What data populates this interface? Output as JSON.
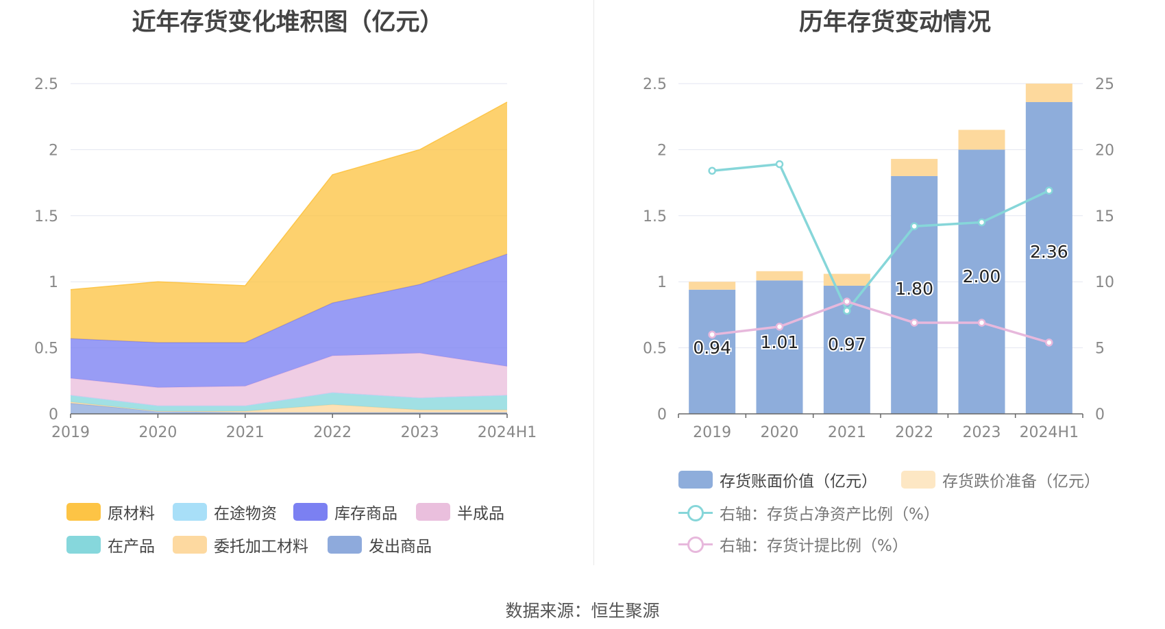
{
  "chart_data": [
    {
      "type": "area",
      "stacked": true,
      "title": "近年存货变化堆积图（亿元）",
      "categories": [
        "2019",
        "2020",
        "2021",
        "2022",
        "2023",
        "2024H1"
      ],
      "y_ticks": [
        "0",
        "0.5",
        "1",
        "1.5",
        "2",
        "2.5"
      ],
      "ylim": [
        0,
        2.5
      ],
      "grid": true,
      "legend_position": "bottom",
      "series": [
        {
          "name": "发出商品",
          "color": "#8eaadc",
          "values": [
            0.08,
            0.02,
            0.01,
            0.01,
            0.01,
            0.01
          ]
        },
        {
          "name": "委托加工材料",
          "color": "#fdd9a0",
          "values": [
            0.01,
            0.0,
            0.01,
            0.06,
            0.02,
            0.02
          ]
        },
        {
          "name": "在产品",
          "color": "#86d7dc",
          "values": [
            0.05,
            0.04,
            0.04,
            0.09,
            0.09,
            0.11
          ]
        },
        {
          "name": "在途物资",
          "color": "#a8dff8",
          "values": [
            0.0,
            0.0,
            0.0,
            0.0,
            0.0,
            0.0
          ]
        },
        {
          "name": "半成品",
          "color": "#eabfdd",
          "values": [
            0.13,
            0.14,
            0.15,
            0.28,
            0.34,
            0.22
          ]
        },
        {
          "name": "库存商品",
          "color": "#7b80f2",
          "values": [
            0.3,
            0.34,
            0.33,
            0.4,
            0.52,
            0.85
          ]
        },
        {
          "name": "原材料",
          "color": "#fdc445",
          "values": [
            0.37,
            0.46,
            0.43,
            0.97,
            1.02,
            1.15
          ]
        }
      ],
      "legend_order": [
        "原材料",
        "在途物资",
        "库存商品",
        "半成品",
        "在产品",
        "委托加工材料",
        "发出商品"
      ]
    },
    {
      "type": "bar",
      "stacked": true,
      "title": "历年存货变动情况",
      "categories": [
        "2019",
        "2020",
        "2021",
        "2022",
        "2023",
        "2024H1"
      ],
      "y_ticks": [
        "0",
        "0.5",
        "1",
        "1.5",
        "2",
        "2.5"
      ],
      "ylim": [
        0,
        2.5
      ],
      "y2_ticks": [
        "0",
        "5",
        "10",
        "15",
        "20",
        "25"
      ],
      "y2lim": [
        0,
        25
      ],
      "grid": true,
      "legend_position": "bottom",
      "bar_series": [
        {
          "name": "存货账面价值（亿元）",
          "color": "#8eaddb",
          "values": [
            0.94,
            1.01,
            0.97,
            1.8,
            2.0,
            2.36
          ],
          "labels": [
            "0.94",
            "1.01",
            "0.97",
            "1.80",
            "2.00",
            "2.36"
          ]
        },
        {
          "name": "存货跌价准备（亿元）",
          "color": "#fdd99d",
          "values": [
            0.06,
            0.07,
            0.09,
            0.13,
            0.15,
            0.14
          ]
        }
      ],
      "line_series": [
        {
          "name": "右轴：存货占净资产比例（%）",
          "color": "#86d6d9",
          "values": [
            18.4,
            18.9,
            7.8,
            14.2,
            14.5,
            16.9
          ]
        },
        {
          "name": "右轴：存货计提比例（%）",
          "color": "#e7b8dc",
          "values": [
            6.0,
            6.6,
            8.5,
            6.9,
            6.9,
            5.4
          ]
        }
      ]
    }
  ],
  "source": "数据来源：恒生聚源"
}
